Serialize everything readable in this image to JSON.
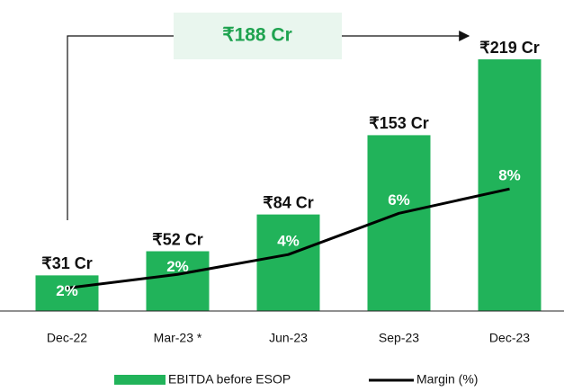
{
  "chart_data": {
    "type": "bar",
    "categories": [
      "Dec-22",
      "Mar-23 *",
      "Jun-23",
      "Sep-23",
      "Dec-23"
    ],
    "series": [
      {
        "name": "EBITDA before ESOP",
        "color": "#21b35a",
        "values": [
          31,
          52,
          84,
          153,
          219
        ],
        "value_labels": [
          "₹31 Cr",
          "₹52 Cr",
          "₹84 Cr",
          "₹153 Cr",
          "₹219 Cr"
        ]
      },
      {
        "name": "Margin (%)",
        "type": "line",
        "axis": "y2",
        "color": "#000000",
        "values": [
          1.5,
          2.4,
          3.7,
          6.4,
          8.0
        ],
        "value_labels": [
          "2%",
          "2%",
          "4%",
          "6%",
          "8%"
        ]
      }
    ],
    "ylim": [
      0,
      255
    ],
    "y2lim": [
      0,
      19.2
    ],
    "annotation": "₹188 Cr",
    "legend": "bottom"
  }
}
